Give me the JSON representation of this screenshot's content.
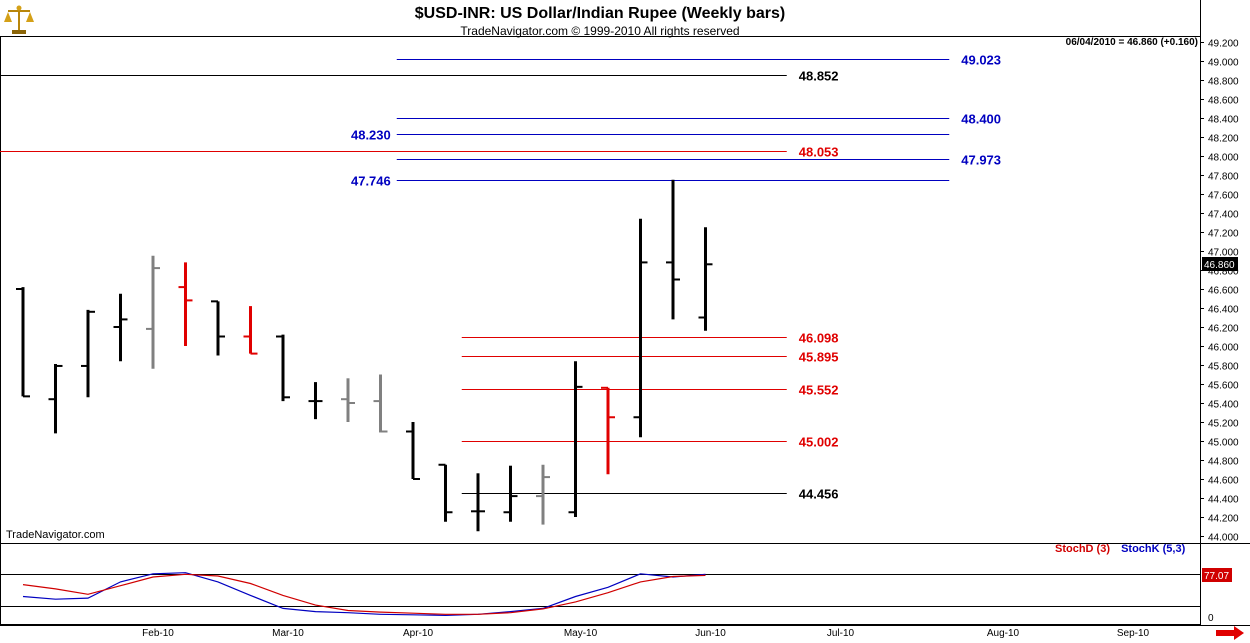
{
  "header": {
    "title": "$USD-INR:  US Dollar/Indian Rupee  (Weekly bars)",
    "subtitle": "TradeNavigator.com © 1999-2010 All rights reserved",
    "readout": "06/04/2010 = 46.860 (+0.160)",
    "watermark": "TradeNavigator.com"
  },
  "colors": {
    "up_bar": "#000000",
    "down_bar": "#e00000",
    "neutral_bar": "#808080",
    "blue_level": "#0000c0",
    "red_level": "#e00000",
    "black_level": "#000000",
    "stoch_d": "#d00000",
    "stoch_k": "#0000c0"
  },
  "icons": {
    "logo": "scales-icon",
    "scroll": "right-arrow-icon"
  },
  "chart_data": {
    "type": "ohlc",
    "title": "$USD-INR:  US Dollar/Indian Rupee  (Weekly bars)",
    "ylim": [
      44.0,
      49.2
    ],
    "y_ticks": [
      "49.200",
      "49.000",
      "48.800",
      "48.600",
      "48.400",
      "48.200",
      "48.000",
      "47.800",
      "47.600",
      "47.400",
      "47.200",
      "47.000",
      "46.800",
      "46.600",
      "46.400",
      "46.200",
      "46.000",
      "45.800",
      "45.600",
      "45.400",
      "45.200",
      "45.000",
      "44.800",
      "44.600",
      "44.400",
      "44.200",
      "44.000"
    ],
    "x_labels": [
      {
        "label": "Feb-10",
        "week": 4
      },
      {
        "label": "Mar-10",
        "week": 8
      },
      {
        "label": "Apr-10",
        "week": 12
      },
      {
        "label": "May-10",
        "week": 17
      },
      {
        "label": "Jun-10",
        "week": 21
      },
      {
        "label": "Jul-10",
        "week": 25
      },
      {
        "label": "Aug-10",
        "week": 30
      },
      {
        "label": "Sep-10",
        "week": 34
      }
    ],
    "last_price": "46.860",
    "bars": [
      {
        "week": 0,
        "o": 46.6,
        "h": 46.62,
        "l": 45.47,
        "c": 45.47,
        "color": "up"
      },
      {
        "week": 1,
        "o": 45.44,
        "h": 45.81,
        "l": 45.08,
        "c": 45.79,
        "color": "up"
      },
      {
        "week": 2,
        "o": 45.79,
        "h": 46.38,
        "l": 45.46,
        "c": 46.36,
        "color": "up"
      },
      {
        "week": 3,
        "o": 46.2,
        "h": 46.55,
        "l": 45.84,
        "c": 46.28,
        "color": "up"
      },
      {
        "week": 4,
        "o": 46.18,
        "h": 46.95,
        "l": 45.76,
        "c": 46.82,
        "color": "neutral"
      },
      {
        "week": 5,
        "o": 46.62,
        "h": 46.88,
        "l": 46.0,
        "c": 46.48,
        "color": "down"
      },
      {
        "week": 6,
        "o": 46.47,
        "h": 46.47,
        "l": 45.9,
        "c": 46.1,
        "color": "up"
      },
      {
        "week": 7,
        "o": 46.1,
        "h": 46.42,
        "l": 45.92,
        "c": 45.92,
        "color": "down"
      },
      {
        "week": 8,
        "o": 46.1,
        "h": 46.12,
        "l": 45.42,
        "c": 45.46,
        "color": "up"
      },
      {
        "week": 9,
        "o": 45.42,
        "h": 45.62,
        "l": 45.23,
        "c": 45.42,
        "color": "up"
      },
      {
        "week": 10,
        "o": 45.44,
        "h": 45.66,
        "l": 45.2,
        "c": 45.4,
        "color": "neutral"
      },
      {
        "week": 11,
        "o": 45.42,
        "h": 45.7,
        "l": 45.09,
        "c": 45.1,
        "color": "neutral"
      },
      {
        "week": 12,
        "o": 45.1,
        "h": 45.2,
        "l": 44.6,
        "c": 44.6,
        "color": "up"
      },
      {
        "week": 13,
        "o": 44.75,
        "h": 44.75,
        "l": 44.15,
        "c": 44.25,
        "color": "up"
      },
      {
        "week": 14,
        "o": 44.26,
        "h": 44.66,
        "l": 44.05,
        "c": 44.26,
        "color": "up"
      },
      {
        "week": 15,
        "o": 44.25,
        "h": 44.74,
        "l": 44.15,
        "c": 44.42,
        "color": "up"
      },
      {
        "week": 16,
        "o": 44.42,
        "h": 44.75,
        "l": 44.12,
        "c": 44.62,
        "color": "neutral"
      },
      {
        "week": 17,
        "o": 44.25,
        "h": 45.84,
        "l": 44.2,
        "c": 45.57,
        "color": "up"
      },
      {
        "week": 18,
        "o": 45.56,
        "h": 45.56,
        "l": 44.65,
        "c": 45.25,
        "color": "down"
      },
      {
        "week": 19,
        "o": 45.25,
        "h": 47.34,
        "l": 45.04,
        "c": 46.88,
        "color": "up"
      },
      {
        "week": 20,
        "o": 46.88,
        "h": 47.75,
        "l": 46.28,
        "c": 46.7,
        "color": "up"
      },
      {
        "week": 21,
        "o": 46.3,
        "h": 47.25,
        "l": 46.16,
        "c": 46.86,
        "color": "up"
      }
    ],
    "levels": [
      {
        "value": "49.023",
        "y": 49.023,
        "color": "blue",
        "label_side": "right",
        "x0": 11.5,
        "x1": 28.5
      },
      {
        "value": "48.852",
        "y": 48.852,
        "color": "black",
        "label_side": "mid",
        "x0": -1,
        "x1": 23.5
      },
      {
        "value": "48.400",
        "y": 48.4,
        "color": "blue",
        "label_side": "right",
        "x0": 11.5,
        "x1": 28.5
      },
      {
        "value": "48.230",
        "y": 48.23,
        "color": "blue",
        "label_side": "left",
        "x0": 11.5,
        "x1": 28.5
      },
      {
        "value": "48.053",
        "y": 48.053,
        "color": "red",
        "label_side": "mid",
        "x0": -1,
        "x1": 23.5
      },
      {
        "value": "47.973",
        "y": 47.973,
        "color": "blue",
        "label_side": "right",
        "x0": 11.5,
        "x1": 28.5
      },
      {
        "value": "47.746",
        "y": 47.746,
        "color": "blue",
        "label_side": "left",
        "x0": 11.5,
        "x1": 28.5
      },
      {
        "value": "46.098",
        "y": 46.098,
        "color": "red",
        "label_side": "mid",
        "x0": 13.5,
        "x1": 23.5
      },
      {
        "value": "45.895",
        "y": 45.895,
        "color": "red",
        "label_side": "mid",
        "x0": 13.5,
        "x1": 23.5
      },
      {
        "value": "45.552",
        "y": 45.552,
        "color": "red",
        "label_side": "mid",
        "x0": 13.5,
        "x1": 23.5
      },
      {
        "value": "45.002",
        "y": 45.002,
        "color": "red",
        "label_side": "mid",
        "x0": 13.5,
        "x1": 23.5
      },
      {
        "value": "44.456",
        "y": 44.456,
        "color": "black",
        "label_side": "mid",
        "x0": 13.5,
        "x1": 23.5
      }
    ],
    "indicator": {
      "legend_d": "StochD (3)",
      "legend_k": "StochK (5,3)",
      "ylim": [
        0,
        100
      ],
      "overbought": 80,
      "oversold": 20,
      "y_tick": "0",
      "last_value": "77.07",
      "stoch_d": [
        60,
        52,
        42,
        58,
        74,
        79,
        76,
        62,
        40,
        22,
        12,
        9,
        7,
        5,
        5,
        8,
        15,
        28,
        45,
        65,
        75,
        77
      ],
      "stoch_k": [
        38,
        33,
        35,
        65,
        80,
        82,
        65,
        40,
        16,
        10,
        8,
        5,
        4,
        3,
        5,
        10,
        16,
        38,
        55,
        80,
        74,
        79
      ]
    }
  }
}
